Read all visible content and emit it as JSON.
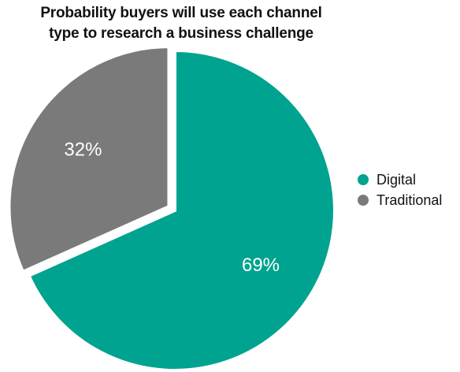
{
  "chart_data": {
    "type": "pie",
    "title_lines": [
      "Probability buyers will use each channel",
      "type to research a business challenge"
    ],
    "categories": [
      "Digital",
      "Traditional"
    ],
    "values": [
      69,
      32
    ],
    "data_labels": [
      "69%",
      "32%"
    ],
    "colors": [
      "#00a38f",
      "#7a7a7a"
    ],
    "exploded_slice": "Traditional",
    "legend_position": "right",
    "legend": [
      {
        "label": "Digital",
        "color": "#00a38f"
      },
      {
        "label": "Traditional",
        "color": "#7a7a7a"
      }
    ]
  }
}
